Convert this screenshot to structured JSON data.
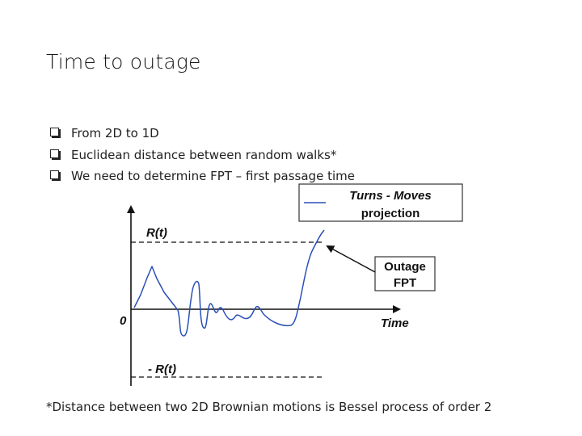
{
  "slide": {
    "title": "Time to outage",
    "bullets": [
      "From 2D to 1D",
      "Euclidean distance between random walks*",
      "We need to determine FPT – first passage time"
    ],
    "footnote": "*Distance between two 2D Brownian motions is Bessel process of order 2"
  },
  "diagram": {
    "legend": {
      "line1": "Turns - Moves",
      "line2": "projection"
    },
    "upper_threshold_label": "R(t)",
    "lower_threshold_label": "- R(t)",
    "origin_label": "0",
    "x_axis_label": "Time",
    "callout": {
      "line1": "Outage",
      "line2": "FPT"
    },
    "colors": {
      "curve": "#2a4fb8",
      "axes": "#111111",
      "legend_border": "#333333"
    }
  }
}
